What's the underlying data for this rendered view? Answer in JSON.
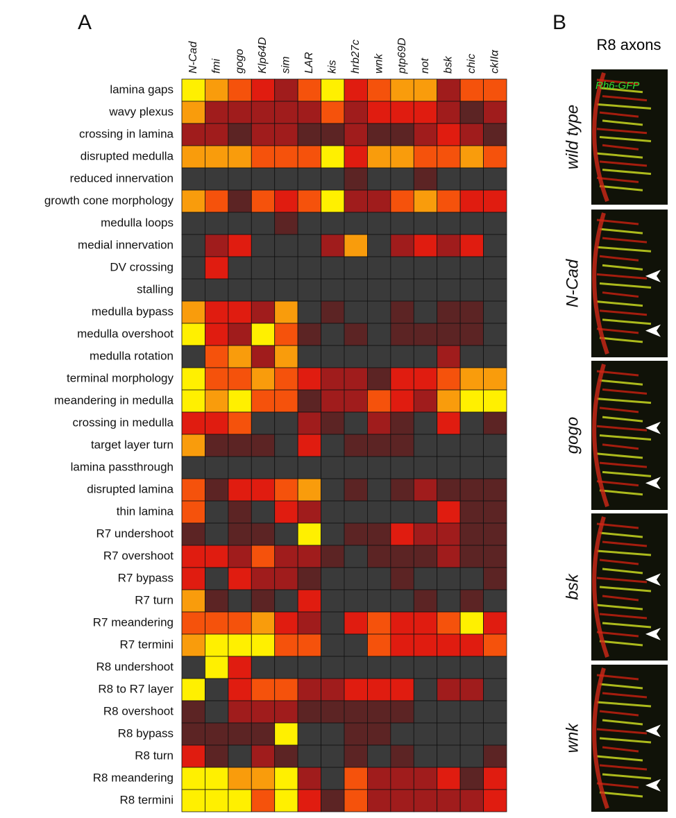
{
  "panel_labels": [
    "A",
    "B"
  ],
  "panel_b": {
    "title": "R8 axons",
    "marker": "Rh6-GFP",
    "images": [
      "wild type",
      "N-Cad",
      "gogo",
      "bsk",
      "wnk"
    ]
  },
  "chart_data": {
    "type": "heatmap",
    "columns": [
      "N-Cad",
      "fmi",
      "gogo",
      "Klp64D",
      "sim",
      "LAR",
      "kis",
      "hrb27c",
      "wnk",
      "ptp69D",
      "not",
      "bsk",
      "chic",
      "ckIIα"
    ],
    "rows": [
      "lamina gaps",
      "wavy plexus",
      "crossing in lamina",
      "disrupted medulla",
      "reduced innervation",
      "growth cone morphology",
      "medulla loops",
      "medial innervation",
      "DV crossing",
      "stalling",
      "medulla bypass",
      "medulla overshoot",
      "medulla rotation",
      "terminal morphology",
      "meandering in medulla",
      "crossing in medulla",
      "target layer turn",
      "lamina passthrough",
      "disrupted lamina",
      "thin lamina",
      "R7 undershoot",
      "R7 overshoot",
      "R7 bypass",
      "R7 turn",
      "R7 meandering",
      "R7 termini",
      "R8 undershoot",
      "R8 to R7 layer",
      "R8 overshoot",
      "R8 bypass",
      "R8 turn",
      "R8 meandering",
      "R8 termini"
    ],
    "colors": [
      "#3a3a3a",
      "#5c2424",
      "#a01c1c",
      "#e01c10",
      "#f5520c",
      "#f99c0c",
      "#fff000"
    ],
    "values": [
      [
        6,
        5,
        4,
        3,
        2,
        4,
        6,
        3,
        4,
        5,
        5,
        2,
        4,
        4
      ],
      [
        5,
        2,
        2,
        2,
        2,
        2,
        4,
        2,
        3,
        3,
        3,
        2,
        1,
        2
      ],
      [
        2,
        2,
        1,
        2,
        2,
        1,
        1,
        2,
        1,
        1,
        2,
        3,
        2,
        1
      ],
      [
        5,
        5,
        5,
        4,
        4,
        4,
        6,
        3,
        5,
        5,
        4,
        4,
        5,
        4
      ],
      [
        0,
        0,
        0,
        0,
        0,
        0,
        0,
        1,
        0,
        0,
        1,
        0,
        0,
        0
      ],
      [
        5,
        4,
        1,
        4,
        3,
        4,
        6,
        2,
        2,
        4,
        5,
        4,
        3,
        3
      ],
      [
        0,
        0,
        0,
        0,
        1,
        0,
        0,
        0,
        0,
        0,
        0,
        0,
        0,
        0
      ],
      [
        0,
        2,
        3,
        0,
        0,
        0,
        2,
        5,
        0,
        2,
        3,
        2,
        3,
        0
      ],
      [
        0,
        3,
        0,
        0,
        0,
        0,
        0,
        0,
        0,
        0,
        0,
        0,
        0,
        0
      ],
      [
        0,
        0,
        0,
        0,
        0,
        0,
        0,
        0,
        0,
        0,
        0,
        0,
        0,
        0
      ],
      [
        5,
        3,
        3,
        2,
        5,
        0,
        1,
        0,
        0,
        1,
        0,
        1,
        1,
        0
      ],
      [
        6,
        3,
        2,
        6,
        4,
        1,
        0,
        1,
        0,
        1,
        1,
        1,
        1,
        0
      ],
      [
        0,
        4,
        5,
        2,
        5,
        0,
        0,
        0,
        0,
        0,
        0,
        2,
        0,
        0
      ],
      [
        6,
        4,
        4,
        5,
        4,
        3,
        2,
        2,
        1,
        3,
        3,
        4,
        5,
        5
      ],
      [
        6,
        5,
        6,
        4,
        4,
        1,
        2,
        2,
        4,
        3,
        2,
        5,
        6,
        6
      ],
      [
        3,
        3,
        4,
        0,
        0,
        2,
        1,
        0,
        2,
        1,
        0,
        3,
        0,
        1
      ],
      [
        5,
        1,
        1,
        1,
        0,
        3,
        0,
        1,
        1,
        1,
        0,
        0,
        0,
        0
      ],
      [
        0,
        0,
        0,
        0,
        0,
        0,
        0,
        0,
        0,
        0,
        0,
        0,
        0,
        0
      ],
      [
        4,
        1,
        3,
        3,
        4,
        5,
        0,
        1,
        0,
        1,
        2,
        1,
        1,
        1
      ],
      [
        4,
        0,
        1,
        0,
        3,
        2,
        0,
        0,
        0,
        0,
        0,
        3,
        1,
        1
      ],
      [
        1,
        0,
        1,
        1,
        0,
        6,
        0,
        1,
        1,
        3,
        2,
        2,
        1,
        1
      ],
      [
        3,
        3,
        2,
        4,
        2,
        2,
        1,
        0,
        1,
        1,
        1,
        2,
        1,
        1
      ],
      [
        3,
        0,
        3,
        2,
        2,
        1,
        0,
        0,
        0,
        1,
        0,
        0,
        0,
        1
      ],
      [
        5,
        1,
        0,
        1,
        0,
        3,
        0,
        0,
        0,
        0,
        1,
        0,
        1,
        0
      ],
      [
        4,
        4,
        4,
        5,
        3,
        2,
        0,
        3,
        4,
        3,
        3,
        4,
        6,
        3
      ],
      [
        5,
        6,
        6,
        6,
        4,
        4,
        0,
        0,
        4,
        3,
        3,
        3,
        3,
        4
      ],
      [
        0,
        6,
        3,
        0,
        0,
        0,
        0,
        0,
        0,
        0,
        0,
        0,
        0,
        0
      ],
      [
        6,
        0,
        3,
        4,
        4,
        2,
        2,
        3,
        3,
        3,
        0,
        2,
        2,
        0
      ],
      [
        1,
        0,
        2,
        2,
        2,
        1,
        1,
        1,
        1,
        1,
        0,
        0,
        0,
        0
      ],
      [
        1,
        1,
        1,
        1,
        6,
        0,
        0,
        1,
        1,
        0,
        0,
        0,
        0,
        0
      ],
      [
        3,
        1,
        0,
        2,
        1,
        0,
        0,
        1,
        0,
        1,
        0,
        0,
        0,
        1
      ],
      [
        6,
        6,
        5,
        5,
        6,
        2,
        0,
        4,
        2,
        2,
        2,
        3,
        1,
        3
      ],
      [
        6,
        6,
        6,
        4,
        6,
        3,
        1,
        4,
        2,
        2,
        2,
        2,
        2,
        3
      ]
    ]
  }
}
